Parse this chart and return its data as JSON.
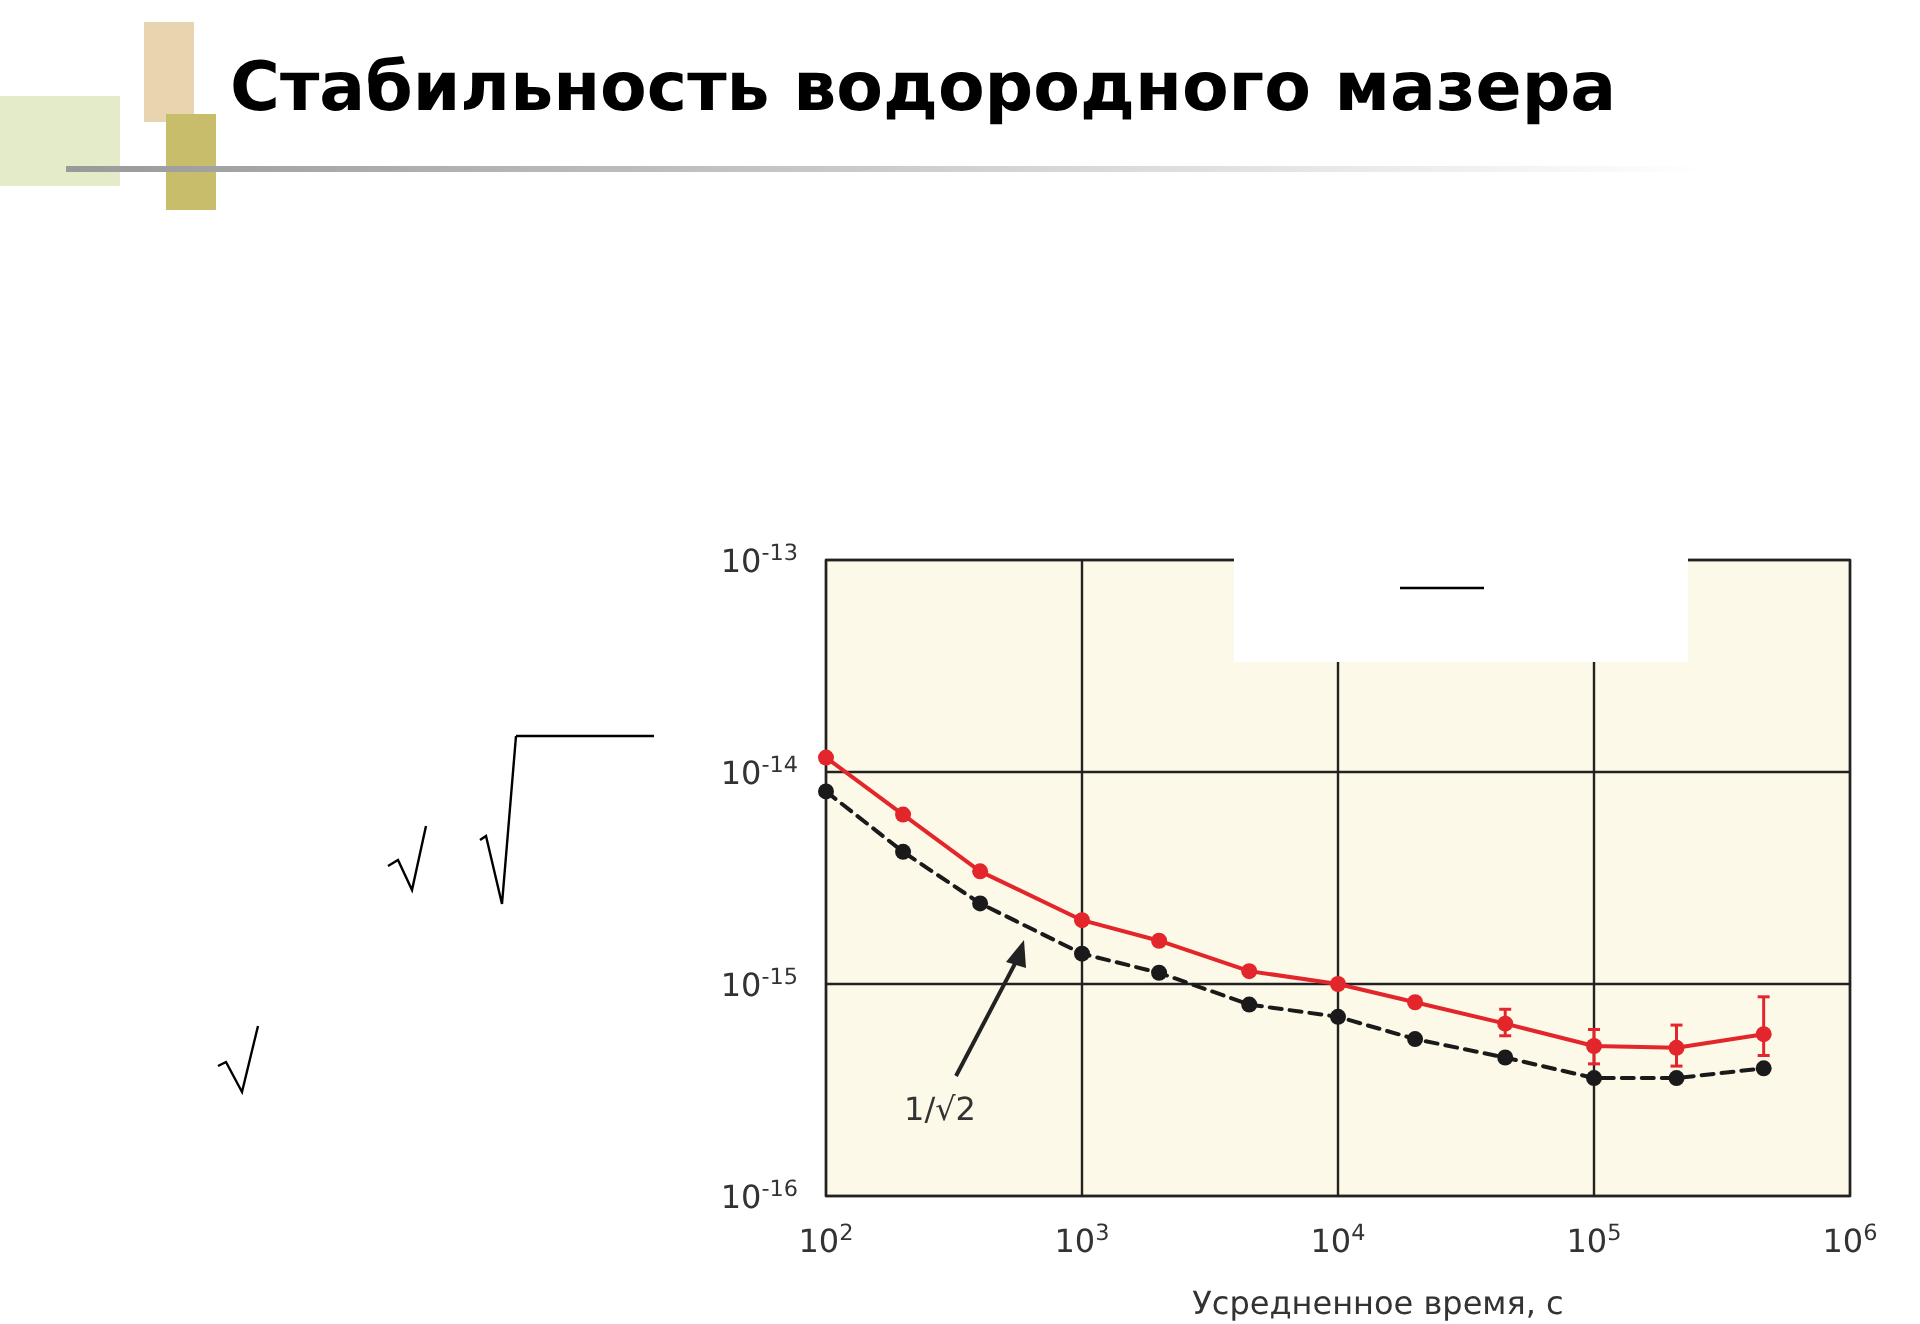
{
  "chart_data": {
    "type": "line",
    "title": "Стабильность водородного мазера",
    "xlabel": "Усредненное время, с",
    "log": "xy",
    "grid": true,
    "marker": "circle",
    "xlim": [
      100,
      1000000
    ],
    "ylim": [
      1e-16,
      1e-13
    ],
    "xticks": [
      {
        "value": 100,
        "label": "10$^{2}$"
      },
      {
        "value": 1000,
        "label": "10$^{3}$"
      },
      {
        "value": 10000,
        "label": "10$^{4}$"
      },
      {
        "value": 100000,
        "label": "10$^{5}$"
      },
      {
        "value": 1000000,
        "label": "10$^{6}$"
      }
    ],
    "yticks": [
      {
        "value": 1e-16,
        "label": "10$^{-16}$"
      },
      {
        "value": 1e-15,
        "label": "10$^{-15}$"
      },
      {
        "value": 1e-14,
        "label": "10$^{-14}$"
      },
      {
        "value": 1e-13,
        "label": "10$^{-13}$"
      }
    ],
    "x": [
      100,
      200,
      400,
      1000,
      2000,
      4500,
      10000,
      20000,
      45000,
      100000,
      210000,
      460000
    ],
    "series": [
      {
        "color": "#e3262b",
        "line_style": "solid",
        "values": [
          1.17e-14,
          6.3e-15,
          3.4e-15,
          2e-15,
          1.6e-15,
          1.15e-15,
          1e-15,
          8.2e-16,
          6.5e-16,
          5.1e-16,
          5e-16,
          5.8e-16
        ],
        "errors": [
          null,
          null,
          null,
          null,
          null,
          null,
          null,
          null,
          [
            5.7e-16,
            7.6e-16
          ],
          [
            4.2e-16,
            6.1e-16
          ],
          [
            4.1e-16,
            6.4e-16
          ],
          [
            4.6e-16,
            8.7e-16
          ]
        ]
      },
      {
        "color": "#1a1a1a",
        "line_style": "dashed",
        "values": [
          8.1e-15,
          4.2e-15,
          2.4e-15,
          1.39e-15,
          1.13e-15,
          8e-16,
          7e-16,
          5.5e-16,
          4.5e-16,
          3.6e-16,
          3.6e-16,
          4e-16
        ]
      }
    ],
    "annotations": [
      "1/√2"
    ]
  }
}
